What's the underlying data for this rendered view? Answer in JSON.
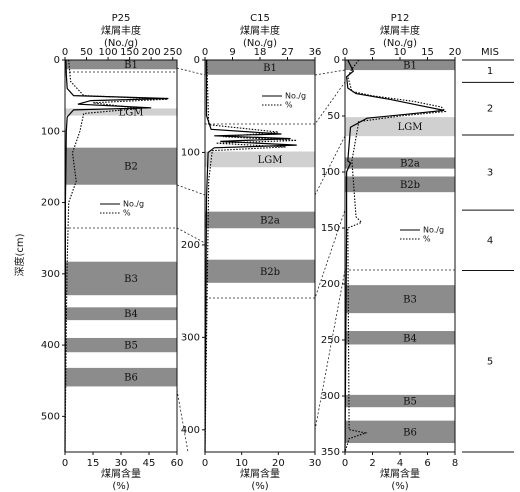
{
  "chart_data": [
    {
      "type": "line",
      "title": "P25",
      "xlabel_top": [
        "煤屑丰度",
        "(No./g)"
      ],
      "xlabel": [
        "煤屑含量",
        "(%)"
      ],
      "xlim_top": [
        0,
        260
      ],
      "xticks_top": [
        0,
        50,
        100,
        150,
        200,
        250
      ],
      "xlim": [
        0,
        60
      ],
      "xticks": [
        0,
        15,
        30,
        45,
        60
      ],
      "ylim": [
        0,
        550
      ],
      "yticks": [
        0,
        100,
        200,
        300,
        400,
        500
      ],
      "bands": [
        {
          "label": "B1",
          "range": [
            0,
            13
          ],
          "color": "#8c8c8c"
        },
        {
          "label": "LGM",
          "range": [
            68,
            78
          ],
          "color": "#d0d0d0"
        },
        {
          "label": "B2",
          "range": [
            123,
            175
          ],
          "color": "#8c8c8c"
        },
        {
          "label": "B3",
          "range": [
            283,
            330
          ],
          "color": "#8c8c8c"
        },
        {
          "label": "B4",
          "range": [
            347,
            365
          ],
          "color": "#8c8c8c"
        },
        {
          "label": "B5",
          "range": [
            390,
            410
          ],
          "color": "#8c8c8c"
        },
        {
          "label": "B6",
          "range": [
            432,
            458
          ],
          "color": "#8c8c8c"
        }
      ],
      "series": [
        {
          "name": "No./g",
          "axis": "top",
          "dash": "solid",
          "color": "#000",
          "depth": [
            0,
            20,
            40,
            50,
            54,
            57,
            62,
            67,
            70,
            80,
            100,
            150,
            200,
            300,
            550
          ],
          "values": [
            2,
            3,
            5,
            20,
            240,
            60,
            30,
            200,
            20,
            5,
            3,
            2,
            1,
            1,
            0
          ]
        },
        {
          "name": "%",
          "axis": "bottom",
          "dash": "dotted",
          "color": "#000",
          "depth": [
            0,
            30,
            50,
            55,
            60,
            68,
            75,
            100,
            130,
            170,
            200,
            300,
            550
          ],
          "values": [
            2,
            3,
            10,
            55,
            15,
            40,
            10,
            8,
            4,
            6,
            2,
            1,
            0
          ]
        }
      ]
    },
    {
      "type": "line",
      "title": "C15",
      "xlabel_top": [
        "煤屑丰度",
        "(No./g)"
      ],
      "xlabel": [
        "煤屑含量",
        "(%)"
      ],
      "xlim_top": [
        0,
        36
      ],
      "xticks_top": [
        0,
        9,
        18,
        27,
        36
      ],
      "xlim": [
        0,
        30
      ],
      "xticks": [
        0,
        10,
        20,
        30
      ],
      "ylim": [
        0,
        424
      ],
      "yticks": [
        0,
        100,
        200,
        300,
        400
      ],
      "bands": [
        {
          "label": "B1",
          "range": [
            0,
            16
          ],
          "color": "#8c8c8c"
        },
        {
          "label": "LGM",
          "range": [
            99,
            116
          ],
          "color": "#d0d0d0"
        },
        {
          "label": "B2a",
          "range": [
            164,
            182
          ],
          "color": "#8c8c8c"
        },
        {
          "label": "B2b",
          "range": [
            216,
            241
          ],
          "color": "#8c8c8c"
        }
      ],
      "series": [
        {
          "name": "No./g",
          "axis": "top",
          "dash": "solid",
          "color": "#000",
          "depth": [
            0,
            60,
            75,
            80,
            82,
            85,
            88,
            92,
            95,
            100,
            150,
            424
          ],
          "values": [
            0.5,
            0.5,
            2,
            25,
            3,
            28,
            5,
            30,
            3,
            1,
            0.5,
            0
          ]
        },
        {
          "name": "%",
          "axis": "bottom",
          "dash": "dotted",
          "color": "#000",
          "depth": [
            0,
            70,
            78,
            83,
            87,
            90,
            94,
            98,
            130,
            424
          ],
          "values": [
            0.5,
            1,
            20,
            5,
            25,
            3,
            22,
            2,
            1,
            0
          ]
        }
      ]
    },
    {
      "type": "line",
      "title": "P12",
      "xlabel_top": [
        "煤屑丰度",
        "(No./g)"
      ],
      "xlabel": [
        "煤屑含量",
        "(%)"
      ],
      "xlim_top": [
        0,
        20
      ],
      "xticks_top": [
        0,
        5,
        10,
        15,
        20
      ],
      "xlim": [
        0,
        8
      ],
      "xticks": [
        0,
        2,
        4,
        6,
        8
      ],
      "ylim": [
        0,
        350
      ],
      "yticks": [
        0,
        50,
        100,
        150,
        200,
        250,
        300,
        350
      ],
      "bands": [
        {
          "label": "B1",
          "range": [
            0,
            9
          ],
          "color": "#8c8c8c"
        },
        {
          "label": "LGM",
          "range": [
            51,
            68
          ],
          "color": "#d0d0d0"
        },
        {
          "label": "B2a",
          "range": [
            87,
            97
          ],
          "color": "#8c8c8c"
        },
        {
          "label": "B2b",
          "range": [
            104,
            118
          ],
          "color": "#8c8c8c"
        },
        {
          "label": "B3",
          "range": [
            201,
            226
          ],
          "color": "#8c8c8c"
        },
        {
          "label": "B4",
          "range": [
            242,
            254
          ],
          "color": "#8c8c8c"
        },
        {
          "label": "B5",
          "range": [
            299,
            310
          ],
          "color": "#8c8c8c"
        },
        {
          "label": "B6",
          "range": [
            322,
            342
          ],
          "color": "#8c8c8c"
        }
      ],
      "series": [
        {
          "name": "No./g",
          "axis": "top",
          "dash": "solid",
          "color": "#000",
          "depth": [
            0,
            10,
            15,
            25,
            30,
            35,
            40,
            45,
            48,
            52,
            60,
            90,
            92,
            100,
            150,
            350
          ],
          "values": [
            0.5,
            1.5,
            0.3,
            0.5,
            2,
            8,
            13,
            18,
            12,
            4,
            1,
            0.5,
            1,
            0.3,
            0.3,
            0
          ]
        },
        {
          "name": "%",
          "axis": "bottom",
          "dash": "dotted",
          "color": "#000",
          "depth": [
            0,
            8,
            15,
            28,
            32,
            37,
            42,
            46,
            50,
            55,
            90,
            140,
            145,
            150,
            330,
            333,
            338,
            350
          ],
          "values": [
            1,
            0.5,
            0.2,
            0.5,
            2,
            5,
            7,
            7.3,
            4,
            1,
            0.5,
            0.8,
            1.2,
            0.2,
            0.3,
            1.5,
            0.3,
            0
          ]
        }
      ]
    }
  ],
  "ylabel": "深度(cm)",
  "mis": {
    "title": "MIS",
    "labels": [
      "1",
      "2",
      "3",
      "4",
      "5"
    ],
    "boundaries": [
      0,
      20,
      67,
      134,
      188,
      350
    ]
  }
}
